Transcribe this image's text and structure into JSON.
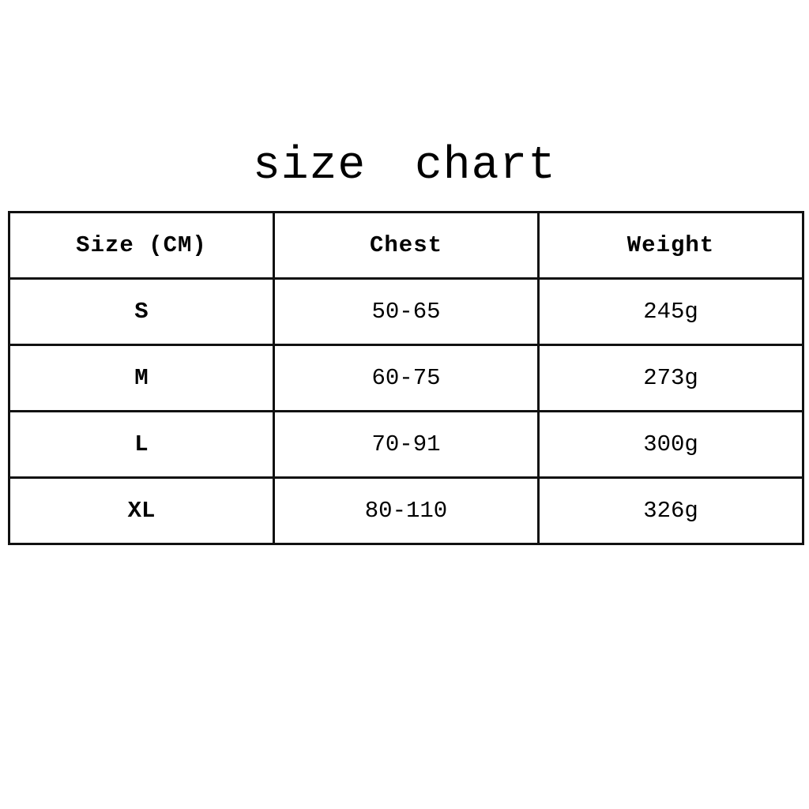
{
  "page": {
    "title": "size chart"
  },
  "colors": {
    "background": "#ffffff",
    "text": "#000000",
    "table_border": "#111111"
  },
  "table": {
    "headers": [
      "Size (CM)",
      "Chest",
      "Weight"
    ],
    "rows": [
      {
        "size": "S",
        "chest": "50-65",
        "weight": "245g"
      },
      {
        "size": "M",
        "chest": "60-75",
        "weight": "273g"
      },
      {
        "size": "L",
        "chest": "70-91",
        "weight": "300g"
      },
      {
        "size": "XL",
        "chest": "80-110",
        "weight": "326g"
      }
    ]
  },
  "chart_data": {
    "type": "table",
    "title": "size chart",
    "columns": [
      "Size (CM)",
      "Chest",
      "Weight"
    ],
    "rows": [
      [
        "S",
        "50-65",
        "245g"
      ],
      [
        "M",
        "60-75",
        "273g"
      ],
      [
        "L",
        "70-91",
        "300g"
      ],
      [
        "XL",
        "80-110",
        "326g"
      ]
    ]
  }
}
